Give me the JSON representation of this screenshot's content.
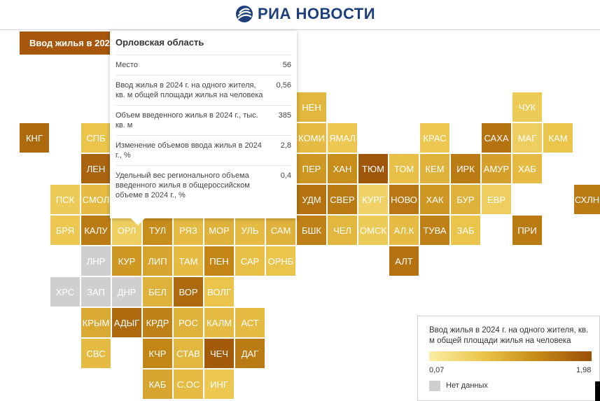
{
  "header": {
    "brand": "РИА НОВОСТИ"
  },
  "chart_title": "Ввод жилья в 2024",
  "chart_data": {
    "type": "tile-map",
    "title": "Ввод жилья в 2024",
    "metric": "Ввод жилья в 2024 г. на одного жителя, кв. м общей площади жилья на человека",
    "range": [
      0.07,
      1.98
    ],
    "regions": [
      {
        "code": "НЕН",
        "value": 0.85
      },
      {
        "code": "ЧУК",
        "value": 0.6
      },
      {
        "code": "КНГ",
        "value": 1.7
      },
      {
        "code": "СПБ",
        "value": 0.7
      },
      {
        "code": "КОМИ",
        "value": 0.8
      },
      {
        "code": "ЯМАЛ",
        "value": 0.65
      },
      {
        "code": "КРАС",
        "value": 0.65
      },
      {
        "code": "САХА",
        "value": 1.6
      },
      {
        "code": "МАГ",
        "value": 0.55
      },
      {
        "code": "КАМ",
        "value": 0.7
      },
      {
        "code": "ЛЕН",
        "value": 1.75
      },
      {
        "code": "ПЕР",
        "value": 1.2
      },
      {
        "code": "ХАН",
        "value": 1.3
      },
      {
        "code": "ТЮМ",
        "value": 1.9
      },
      {
        "code": "ТОМ",
        "value": 0.75
      },
      {
        "code": "КЕМ",
        "value": 0.9
      },
      {
        "code": "ИРК",
        "value": 1.5
      },
      {
        "code": "АМУР",
        "value": 1.1
      },
      {
        "code": "ХАБ",
        "value": 0.8
      },
      {
        "code": "ПСК",
        "value": 0.6
      },
      {
        "code": "СМОЛ",
        "value": 0.8
      },
      {
        "code": "УДМ",
        "value": 1.6
      },
      {
        "code": "СВЕР",
        "value": 1.5
      },
      {
        "code": "КУРГ",
        "value": 0.5
      },
      {
        "code": "НОВО",
        "value": 1.55
      },
      {
        "code": "ХАК",
        "value": 1.2
      },
      {
        "code": "БУР",
        "value": 0.9
      },
      {
        "code": "ЕВР",
        "value": 0.55
      },
      {
        "code": "СХЛН",
        "value": 1.5
      },
      {
        "code": "БРЯ",
        "value": 0.65
      },
      {
        "code": "КАЛУ",
        "value": 1.5
      },
      {
        "code": "ОРЛ",
        "value": 0.56
      },
      {
        "code": "ТУЛ",
        "value": 1.3
      },
      {
        "code": "РЯЗ",
        "value": 0.8
      },
      {
        "code": "МОР",
        "value": 0.9
      },
      {
        "code": "УЛЬ",
        "value": 0.8
      },
      {
        "code": "САМ",
        "value": 0.9
      },
      {
        "code": "БШК",
        "value": 1.45
      },
      {
        "code": "ЧЕЛ",
        "value": 0.85
      },
      {
        "code": "ОМСК",
        "value": 0.6
      },
      {
        "code": "АЛ.К",
        "value": 0.8
      },
      {
        "code": "ТУВА",
        "value": 1.45
      },
      {
        "code": "ЗАБ",
        "value": 0.7
      },
      {
        "code": "ПРИ",
        "value": 1.5
      },
      {
        "code": "ЛНР",
        "value": null
      },
      {
        "code": "КУР",
        "value": 1.2
      },
      {
        "code": "ЛИП",
        "value": 1.05
      },
      {
        "code": "ТАМ",
        "value": 0.8
      },
      {
        "code": "ПЕН",
        "value": 1.4
      },
      {
        "code": "САР",
        "value": 0.75
      },
      {
        "code": "ОРНБ",
        "value": 0.7
      },
      {
        "code": "АЛТ",
        "value": 1.6
      },
      {
        "code": "ХРС",
        "value": null
      },
      {
        "code": "ЗАП",
        "value": null
      },
      {
        "code": "ДНР",
        "value": null
      },
      {
        "code": "БЕЛ",
        "value": 0.9
      },
      {
        "code": "ВОР",
        "value": 1.7
      },
      {
        "code": "ВОЛГ",
        "value": 0.7
      },
      {
        "code": "КРЫМ",
        "value": 1.0
      },
      {
        "code": "АДЫГ",
        "value": 1.7
      },
      {
        "code": "КРДР",
        "value": 1.45
      },
      {
        "code": "РОС",
        "value": 0.9
      },
      {
        "code": "КАЛМ",
        "value": 0.8
      },
      {
        "code": "АСТ",
        "value": 0.8
      },
      {
        "code": "СВС",
        "value": 0.8
      },
      {
        "code": "КЧР",
        "value": 1.4
      },
      {
        "code": "СТАВ",
        "value": 0.85
      },
      {
        "code": "ЧЕЧ",
        "value": 1.85
      },
      {
        "code": "ДАГ",
        "value": 1.5
      },
      {
        "code": "КАБ",
        "value": 1.05
      },
      {
        "code": "С.ОС",
        "value": 0.8
      },
      {
        "code": "ИНГ",
        "value": 0.65
      }
    ]
  },
  "tooltip": {
    "region": "Орловская область",
    "rows": [
      {
        "label": "Место",
        "value": "56"
      },
      {
        "label": "Ввод жилья в 2024 г. на одного жителя, кв. м общей площади жилья на человека",
        "value": "0,56"
      },
      {
        "label": "Объем введенного жилья в 2024 г., тыс. кв. м",
        "value": "385"
      },
      {
        "label": "Изменение объемов ввода жилья в 2024 г., %",
        "value": "2,8"
      },
      {
        "label": "Удельный вес регионального объема введенного жилья в общероссийском объеме в 2024 г., %",
        "value": "0,4"
      }
    ]
  },
  "legend": {
    "title": "Ввод жилья в 2024 г. на одного жителя, кв. м общей площади жилья на человека",
    "min": "0,07",
    "max": "1,98",
    "no_data": "Нет данных"
  },
  "colors": {
    "low": "#fbeea6",
    "mid": "#eac44a",
    "high": "#c68a18",
    "top": "#9a4f07",
    "nodata": "#cfcfcf"
  }
}
